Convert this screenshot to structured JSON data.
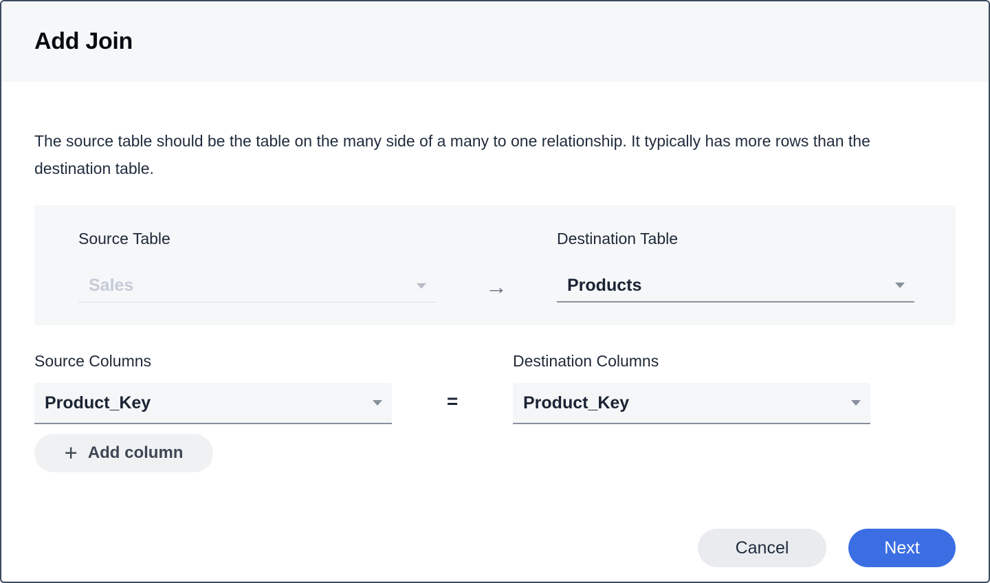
{
  "dialog": {
    "title": "Add Join",
    "description": "The source table should be the table on the many side of a many to one relationship. It typically has more rows than the destination table."
  },
  "table_section": {
    "source": {
      "label": "Source Table",
      "value": "Sales",
      "state": "disabled"
    },
    "arrow_icon": "→",
    "destination": {
      "label": "Destination Table",
      "value": "Products",
      "state": "enabled"
    }
  },
  "columns_section": {
    "source": {
      "label": "Source Columns",
      "value": "Product_Key"
    },
    "equals_icon": "=",
    "destination": {
      "label": "Destination Columns",
      "value": "Product_Key"
    },
    "add_column": {
      "plus_icon": "+",
      "label": "Add column"
    }
  },
  "footer": {
    "cancel_label": "Cancel",
    "next_label": "Next"
  },
  "colors": {
    "accent_blue": "#3B6EE3",
    "header_bg": "#F5F7F9",
    "panel_bg": "#F5F7F9",
    "dialog_border": "#3A4A5E",
    "text_dark": "#1E2837",
    "disabled_text": "#C6CCD7",
    "underline_active": "#8A919D",
    "underline_disabled": "#DBDEE3"
  }
}
